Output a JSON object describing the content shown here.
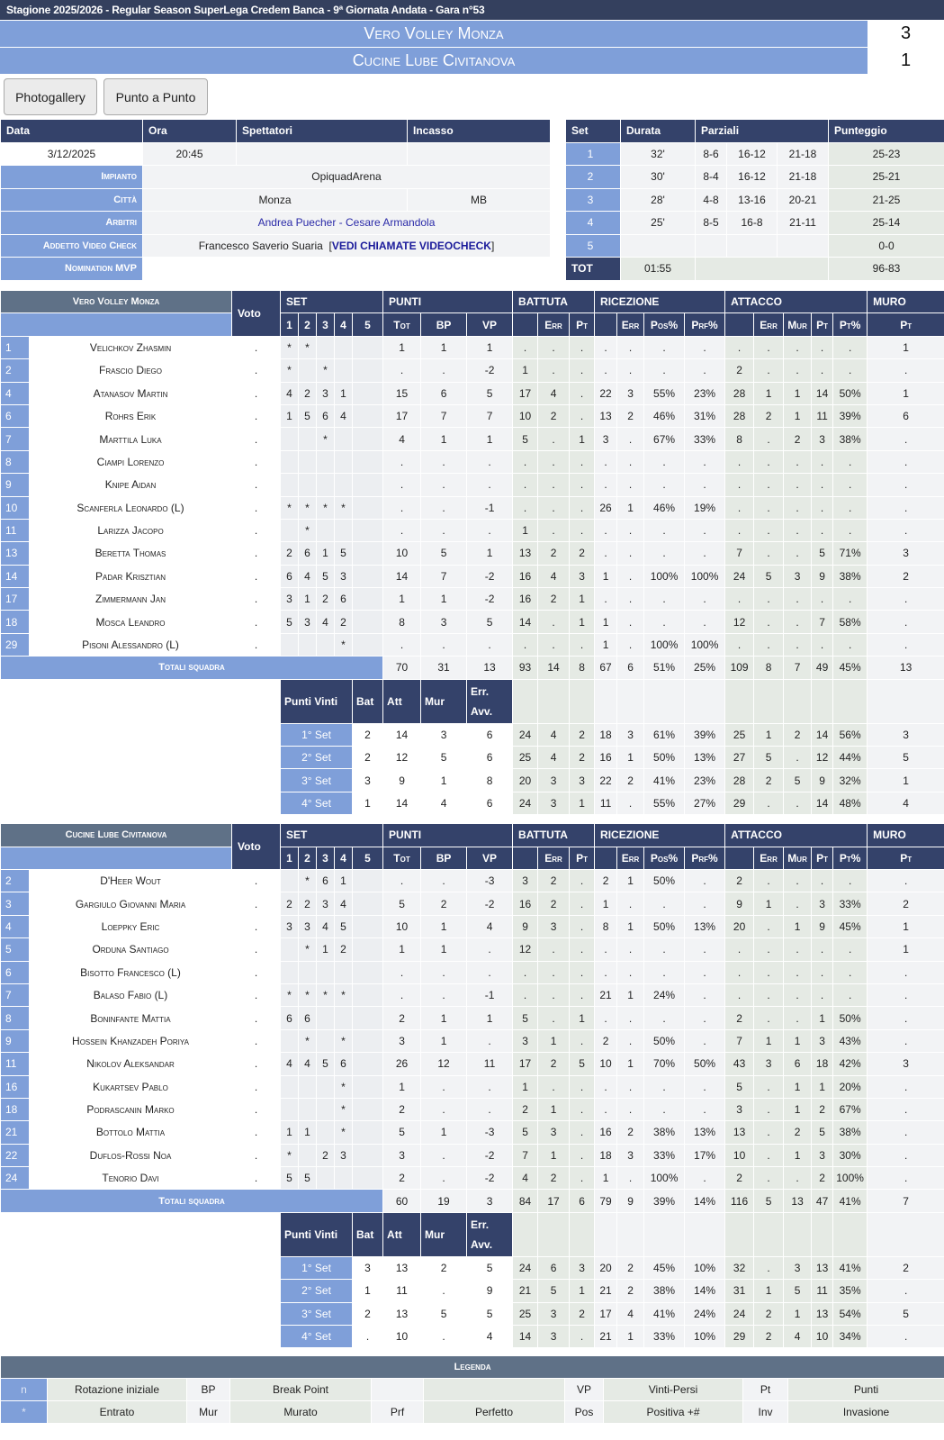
{
  "header": {
    "title": "Stagione  2025/2026 - Regular Season SuperLega Credem Banca - 9ª Giornata Andata - Gara n°53"
  },
  "teams": [
    {
      "name": "Vero Volley Monza",
      "score": "3"
    },
    {
      "name": "Cucine Lube Civitanova",
      "score": "1"
    }
  ],
  "buttons": {
    "photogallery": "Photogallery",
    "punto_a_punto": "Punto a Punto"
  },
  "info": {
    "headers": [
      "Data",
      "Ora",
      "Spettatori",
      "Incasso"
    ],
    "data": "3/12/2025",
    "ora": "20:45",
    "spettatori": "",
    "incasso": "",
    "impianto_label": "Impianto",
    "impianto": "OpiquadArena",
    "citta_label": "Città",
    "citta": "Monza",
    "provincia": "MB",
    "arbitri_label": "Arbitri",
    "arbitro1": "Andrea Puecher",
    "arbitri_sep": " - ",
    "arbitro2": "Cesare Armandola",
    "video_label": "Addetto Video Check",
    "video_addetto": "Francesco Saverio Suaria",
    "video_link": "VEDI CHIAMATE VIDEOCHECK",
    "mvp_label": "Nomination MVP",
    "mvp": ""
  },
  "sets_summary": {
    "headers": [
      "Set",
      "Durata",
      "Parziali",
      "Punteggio"
    ],
    "rows": [
      {
        "set": "1",
        "durata": "32'",
        "p1": "8-6",
        "p2": "16-12",
        "p3": "21-18",
        "punteggio": "25-23"
      },
      {
        "set": "2",
        "durata": "30'",
        "p1": "8-4",
        "p2": "16-12",
        "p3": "21-18",
        "punteggio": "25-21"
      },
      {
        "set": "3",
        "durata": "28'",
        "p1": "4-8",
        "p2": "13-16",
        "p3": "20-21",
        "punteggio": "21-25"
      },
      {
        "set": "4",
        "durata": "25'",
        "p1": "8-5",
        "p2": "16-8",
        "p3": "21-11",
        "punteggio": "25-14"
      },
      {
        "set": "5",
        "durata": "",
        "p1": "",
        "p2": "",
        "p3": "",
        "punteggio": "0-0"
      }
    ],
    "tot_label": "TOT",
    "tot_durata": "01:55",
    "tot_punteggio": "96-83"
  },
  "stat_headers": {
    "voto": "Voto",
    "groups": [
      "SET",
      "PUNTI",
      "BATTUTA",
      "RICEZIONE",
      "ATTACCO",
      "MURO"
    ],
    "sub": [
      "1",
      "2",
      "3",
      "4",
      "5",
      "Tot",
      "BP",
      "VP",
      "",
      "Err",
      "Pt",
      "",
      "Err",
      "Pos%",
      "Prf%",
      "",
      "Err",
      "Mur",
      "Pt",
      "Pt%",
      "Pt"
    ],
    "totali": "Totali squadra",
    "punti_vinti": [
      "Punti Vinti",
      "Bat",
      "Att",
      "Mur",
      "Err. Avv."
    ]
  },
  "stats": [
    {
      "team": "Vero Volley Monza",
      "players": [
        [
          "1",
          "Velichkov Zhasmin",
          ".",
          "*",
          "*",
          "",
          "",
          "",
          "1",
          "1",
          "1",
          ".",
          ".",
          ".",
          ".",
          ".",
          ".",
          ".",
          ".",
          ".",
          ".",
          ".",
          ".",
          "1"
        ],
        [
          "2",
          "Frascio Diego",
          ".",
          "*",
          "",
          "*",
          "",
          "",
          ".",
          ".",
          "-2",
          "1",
          ".",
          ".",
          ".",
          ".",
          ".",
          ".",
          "2",
          ".",
          ".",
          ".",
          ".",
          "."
        ],
        [
          "4",
          "Atanasov Martin",
          ".",
          "4",
          "2",
          "3",
          "1",
          "",
          "15",
          "6",
          "5",
          "17",
          "4",
          ".",
          "22",
          "3",
          "55%",
          "23%",
          "28",
          "1",
          "1",
          "14",
          "50%",
          "1"
        ],
        [
          "6",
          "Rohrs Erik",
          ".",
          "1",
          "5",
          "6",
          "4",
          "",
          "17",
          "7",
          "7",
          "10",
          "2",
          ".",
          "13",
          "2",
          "46%",
          "31%",
          "28",
          "2",
          "1",
          "11",
          "39%",
          "6"
        ],
        [
          "7",
          "Marttila Luka",
          ".",
          "",
          "",
          "*",
          "",
          "",
          "4",
          "1",
          "1",
          "5",
          ".",
          "1",
          "3",
          ".",
          "67%",
          "33%",
          "8",
          ".",
          "2",
          "3",
          "38%",
          "."
        ],
        [
          "8",
          "Ciampi Lorenzo",
          ".",
          "",
          "",
          "",
          "",
          "",
          ".",
          ".",
          ".",
          ".",
          ".",
          ".",
          ".",
          ".",
          ".",
          ".",
          ".",
          ".",
          ".",
          ".",
          ".",
          "."
        ],
        [
          "9",
          "Knipe Aidan",
          ".",
          "",
          "",
          "",
          "",
          "",
          ".",
          ".",
          ".",
          ".",
          ".",
          ".",
          ".",
          ".",
          ".",
          ".",
          ".",
          ".",
          ".",
          ".",
          ".",
          "."
        ],
        [
          "10",
          "Scanferla Leonardo (L)",
          ".",
          "*",
          "*",
          "*",
          "*",
          "",
          ".",
          ".",
          "-1",
          ".",
          ".",
          ".",
          "26",
          "1",
          "46%",
          "19%",
          ".",
          ".",
          ".",
          ".",
          ".",
          "."
        ],
        [
          "11",
          "Larizza Jacopo",
          ".",
          "",
          "*",
          "",
          "",
          "",
          ".",
          ".",
          ".",
          "1",
          ".",
          ".",
          ".",
          ".",
          ".",
          ".",
          ".",
          ".",
          ".",
          ".",
          ".",
          "."
        ],
        [
          "13",
          "Beretta Thomas",
          ".",
          "2",
          "6",
          "1",
          "5",
          "",
          "10",
          "5",
          "1",
          "13",
          "2",
          "2",
          ".",
          ".",
          ".",
          ".",
          "7",
          ".",
          ".",
          "5",
          "71%",
          "3"
        ],
        [
          "14",
          "Padar Krisztian",
          ".",
          "6",
          "4",
          "5",
          "3",
          "",
          "14",
          "7",
          "-2",
          "16",
          "4",
          "3",
          "1",
          ".",
          "100%",
          "100%",
          "24",
          "5",
          "3",
          "9",
          "38%",
          "2"
        ],
        [
          "17",
          "Zimmermann Jan",
          ".",
          "3",
          "1",
          "2",
          "6",
          "",
          "1",
          "1",
          "-2",
          "16",
          "2",
          "1",
          ".",
          ".",
          ".",
          ".",
          ".",
          ".",
          ".",
          ".",
          ".",
          "."
        ],
        [
          "18",
          "Mosca Leandro",
          ".",
          "5",
          "3",
          "4",
          "2",
          "",
          "8",
          "3",
          "5",
          "14",
          ".",
          "1",
          "1",
          ".",
          ".",
          ".",
          "12",
          ".",
          ".",
          "7",
          "58%",
          "."
        ],
        [
          "29",
          "Pisoni Alessandro (L)",
          ".",
          "",
          "",
          "",
          "*",
          "",
          ".",
          ".",
          ".",
          ".",
          ".",
          ".",
          "1",
          ".",
          "100%",
          "100%",
          ".",
          ".",
          ".",
          ".",
          ".",
          "."
        ]
      ],
      "totals": [
        "70",
        "31",
        "13",
        "93",
        "14",
        "8",
        "67",
        "6",
        "51%",
        "25%",
        "109",
        "8",
        "7",
        "49",
        "45%",
        "13"
      ],
      "per_set": [
        [
          "1° Set",
          "2",
          "14",
          "3",
          "6",
          "24",
          "4",
          "2",
          "18",
          "3",
          "61%",
          "39%",
          "25",
          "1",
          "2",
          "14",
          "56%",
          "3"
        ],
        [
          "2° Set",
          "2",
          "12",
          "5",
          "6",
          "25",
          "4",
          "2",
          "16",
          "1",
          "50%",
          "13%",
          "27",
          "5",
          ".",
          "12",
          "44%",
          "5"
        ],
        [
          "3° Set",
          "3",
          "9",
          "1",
          "8",
          "20",
          "3",
          "3",
          "22",
          "2",
          "41%",
          "23%",
          "28",
          "2",
          "5",
          "9",
          "32%",
          "1"
        ],
        [
          "4° Set",
          "1",
          "14",
          "4",
          "6",
          "24",
          "3",
          "1",
          "11",
          ".",
          "55%",
          "27%",
          "29",
          ".",
          ".",
          "14",
          "48%",
          "4"
        ]
      ]
    },
    {
      "team": "Cucine Lube Civitanova",
      "players": [
        [
          "2",
          "D'Heer Wout",
          ".",
          "",
          "*",
          "6",
          "1",
          "",
          ".",
          ".",
          "-3",
          "3",
          "2",
          ".",
          "2",
          "1",
          "50%",
          ".",
          "2",
          ".",
          ".",
          ".",
          ".",
          "."
        ],
        [
          "3",
          "Gargiulo Giovanni Maria",
          ".",
          "2",
          "2",
          "3",
          "4",
          "",
          "5",
          "2",
          "-2",
          "16",
          "2",
          ".",
          "1",
          ".",
          ".",
          ".",
          "9",
          "1",
          ".",
          "3",
          "33%",
          "2"
        ],
        [
          "4",
          "Loeppky Eric",
          ".",
          "3",
          "3",
          "4",
          "5",
          "",
          "10",
          "1",
          "4",
          "9",
          "3",
          ".",
          "8",
          "1",
          "50%",
          "13%",
          "20",
          ".",
          "1",
          "9",
          "45%",
          "1"
        ],
        [
          "5",
          "Orduna Santiago",
          ".",
          "",
          "*",
          "1",
          "2",
          "",
          "1",
          "1",
          ".",
          "12",
          ".",
          ".",
          ".",
          ".",
          ".",
          ".",
          ".",
          ".",
          ".",
          ".",
          ".",
          "1"
        ],
        [
          "6",
          "Bisotto Francesco (L)",
          ".",
          "",
          "",
          "",
          "",
          "",
          ".",
          ".",
          ".",
          ".",
          ".",
          ".",
          ".",
          ".",
          ".",
          ".",
          ".",
          ".",
          ".",
          ".",
          ".",
          "."
        ],
        [
          "7",
          "Balaso Fabio (L)",
          ".",
          "*",
          "*",
          "*",
          "*",
          "",
          ".",
          ".",
          "-1",
          ".",
          ".",
          ".",
          "21",
          "1",
          "24%",
          ".",
          ".",
          ".",
          ".",
          ".",
          ".",
          "."
        ],
        [
          "8",
          "Boninfante Mattia",
          ".",
          "6",
          "6",
          "",
          "",
          "",
          "2",
          "1",
          "1",
          "5",
          ".",
          "1",
          ".",
          ".",
          ".",
          ".",
          "2",
          ".",
          ".",
          "1",
          "50%",
          "."
        ],
        [
          "9",
          "Hossein Khanzadeh Poriya",
          ".",
          "",
          "*",
          "",
          "*",
          "",
          "3",
          "1",
          ".",
          "3",
          "1",
          ".",
          "2",
          ".",
          "50%",
          ".",
          "7",
          "1",
          "1",
          "3",
          "43%",
          "."
        ],
        [
          "11",
          "Nikolov Aleksandar",
          ".",
          "4",
          "4",
          "5",
          "6",
          "",
          "26",
          "12",
          "11",
          "17",
          "2",
          "5",
          "10",
          "1",
          "70%",
          "50%",
          "43",
          "3",
          "6",
          "18",
          "42%",
          "3"
        ],
        [
          "16",
          "Kukartsev Pablo",
          ".",
          "",
          "",
          "",
          "*",
          "",
          "1",
          ".",
          ".",
          "1",
          ".",
          ".",
          ".",
          ".",
          ".",
          ".",
          "5",
          ".",
          "1",
          "1",
          "20%",
          "."
        ],
        [
          "18",
          "Podrascanin Marko",
          ".",
          "",
          "",
          "",
          "*",
          "",
          "2",
          ".",
          ".",
          "2",
          "1",
          ".",
          ".",
          ".",
          ".",
          ".",
          "3",
          ".",
          "1",
          "2",
          "67%",
          "."
        ],
        [
          "21",
          "Bottolo Mattia",
          ".",
          "1",
          "1",
          "",
          "*",
          "",
          "5",
          "1",
          "-3",
          "5",
          "3",
          ".",
          "16",
          "2",
          "38%",
          "13%",
          "13",
          ".",
          "2",
          "5",
          "38%",
          "."
        ],
        [
          "22",
          "Duflos-Rossi Noa",
          ".",
          "*",
          "",
          "2",
          "3",
          "",
          "3",
          ".",
          "-2",
          "7",
          "1",
          ".",
          "18",
          "3",
          "33%",
          "17%",
          "10",
          ".",
          "1",
          "3",
          "30%",
          "."
        ],
        [
          "24",
          "Tenorio Davi",
          ".",
          "5",
          "5",
          "",
          "",
          "",
          "2",
          ".",
          "-2",
          "4",
          "2",
          ".",
          "1",
          ".",
          "100%",
          ".",
          "2",
          ".",
          ".",
          "2",
          "100%",
          "."
        ]
      ],
      "totals": [
        "60",
        "19",
        "3",
        "84",
        "17",
        "6",
        "79",
        "9",
        "39%",
        "14%",
        "116",
        "5",
        "13",
        "47",
        "41%",
        "7"
      ],
      "per_set": [
        [
          "1° Set",
          "3",
          "13",
          "2",
          "5",
          "24",
          "6",
          "3",
          "20",
          "2",
          "45%",
          "10%",
          "32",
          ".",
          "3",
          "13",
          "41%",
          "2"
        ],
        [
          "2° Set",
          "1",
          "11",
          ".",
          "9",
          "21",
          "5",
          "1",
          "21",
          "2",
          "38%",
          "14%",
          "31",
          "1",
          "5",
          "11",
          "35%",
          "."
        ],
        [
          "3° Set",
          "2",
          "13",
          "5",
          "5",
          "25",
          "3",
          "2",
          "17",
          "4",
          "41%",
          "24%",
          "24",
          "2",
          "1",
          "13",
          "54%",
          "5"
        ],
        [
          "4° Set",
          ".",
          "10",
          ".",
          "4",
          "14",
          "3",
          ".",
          "21",
          "1",
          "33%",
          "10%",
          "29",
          "2",
          "4",
          "10",
          "34%",
          "."
        ]
      ]
    }
  ],
  "legend": {
    "title": "Legenda",
    "rows": [
      [
        "n",
        "Rotazione iniziale",
        "BP",
        "Break Point",
        "",
        "",
        "VP",
        "Vinti-Persi",
        "Pt",
        "Punti"
      ],
      [
        "*",
        "Entrato",
        "Mur",
        "Murato",
        "Prf",
        "Perfetto",
        "Pos",
        "Positiva +#",
        "Inv",
        "Invasione"
      ]
    ]
  },
  "colors": {
    "navy": "#34426a",
    "accent_blue": "#7f9fd9",
    "slate": "#5f7187",
    "zone_green": "#e5eae4"
  }
}
